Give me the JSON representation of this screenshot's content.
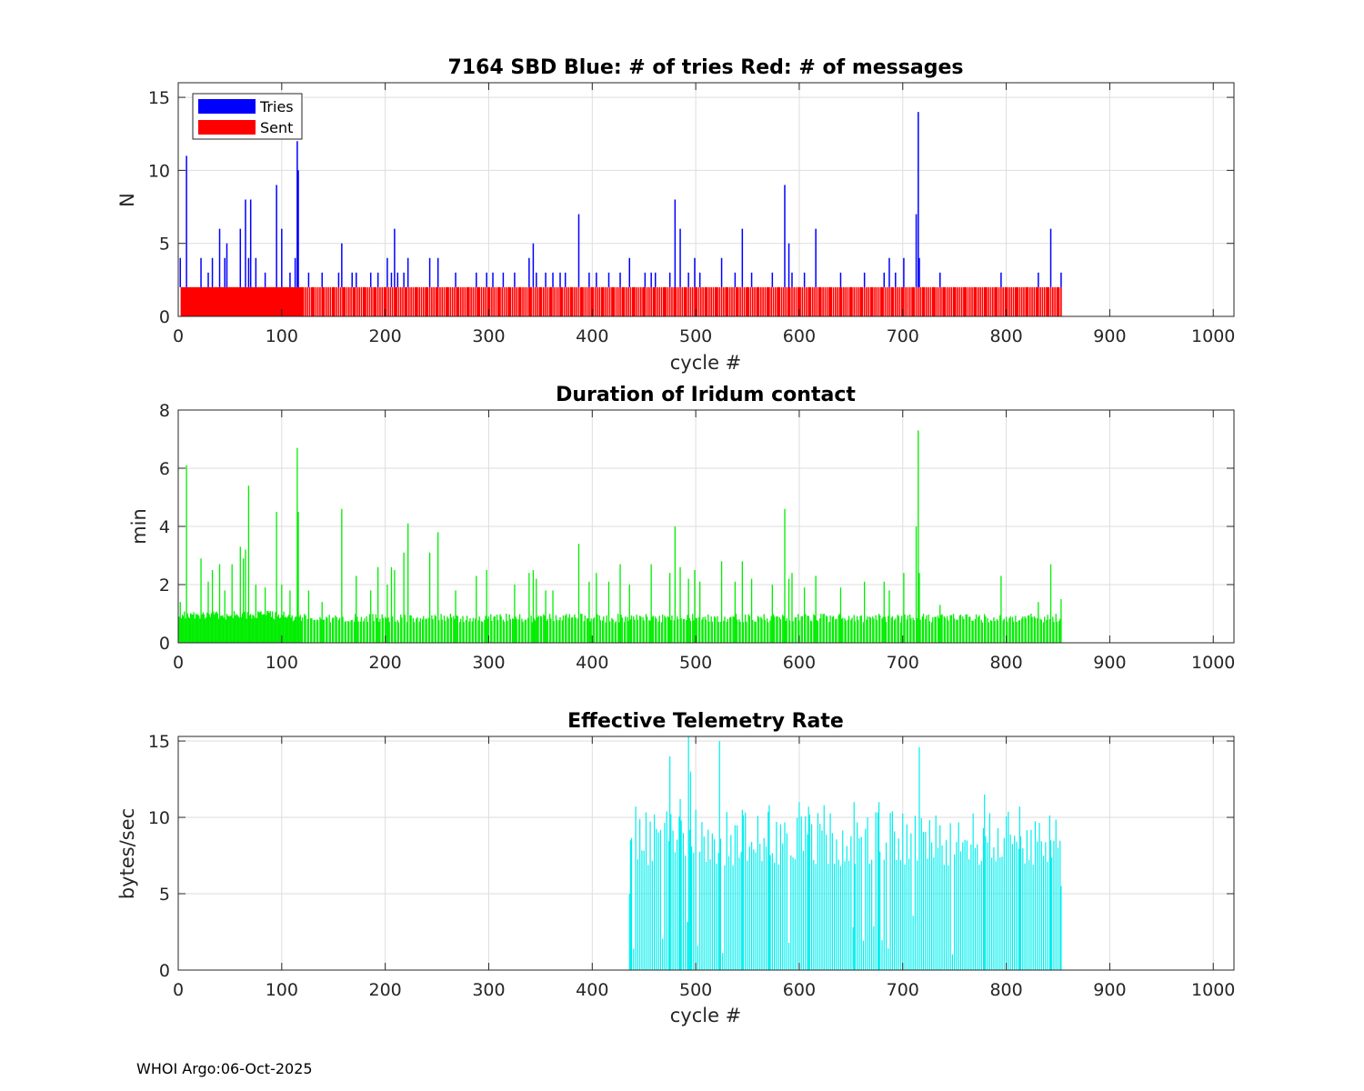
{
  "footer": "WHOI Argo:06-Oct-2025",
  "colors": {
    "tries": "#0000ff",
    "sent": "#ff0000",
    "duration": "#00ee00",
    "rate": "#00eeee",
    "grid": "#dedede"
  },
  "chart_data": [
    {
      "type": "bar",
      "title": "7164 SBD  Blue: # of tries   Red: # of messages",
      "xlabel": "cycle #",
      "ylabel": "N",
      "xlim": [
        0,
        1020
      ],
      "ylim": [
        0,
        16
      ],
      "xticks": [
        0,
        100,
        200,
        300,
        400,
        500,
        600,
        700,
        800,
        900,
        1000
      ],
      "yticks": [
        0,
        5,
        10,
        15
      ],
      "grid": true,
      "legend": {
        "placement": "top-left",
        "entries": [
          "Tries",
          "Sent"
        ]
      },
      "series": [
        {
          "name": "Tries",
          "color": "#0000ff",
          "x": [
            2,
            8,
            22,
            29,
            33,
            40,
            45,
            47,
            60,
            65,
            68,
            70,
            75,
            84,
            95,
            100,
            108,
            113,
            115,
            116,
            126,
            139,
            155,
            158,
            168,
            172,
            186,
            193,
            202,
            206,
            209,
            212,
            218,
            222,
            243,
            251,
            268,
            288,
            298,
            304,
            314,
            325,
            339,
            343,
            346,
            355,
            362,
            369,
            374,
            387,
            397,
            404,
            416,
            427,
            436,
            451,
            457,
            461,
            475,
            480,
            485,
            493,
            499,
            504,
            525,
            538,
            545,
            554,
            574,
            586,
            590,
            593,
            605,
            616,
            640,
            663,
            682,
            687,
            693,
            701,
            713,
            715,
            716,
            736,
            795,
            831,
            843,
            853
          ],
          "values": [
            4,
            11,
            4,
            3,
            4,
            6,
            4,
            5,
            6,
            8,
            4,
            8,
            4,
            3,
            9,
            6,
            3,
            4,
            12,
            10,
            3,
            3,
            3,
            5,
            3,
            3,
            3,
            3,
            4,
            3,
            6,
            3,
            3,
            4,
            4,
            4,
            3,
            3,
            3,
            3,
            3,
            3,
            4,
            5,
            3,
            3,
            3,
            3,
            3,
            7,
            3,
            3,
            3,
            3,
            4,
            3,
            3,
            3,
            3,
            8,
            6,
            3,
            4,
            3,
            4,
            3,
            6,
            3,
            3,
            9,
            5,
            3,
            3,
            6,
            3,
            3,
            3,
            4,
            3,
            4,
            7,
            14,
            4,
            3,
            3,
            3,
            6,
            3
          ]
        },
        {
          "name": "Sent",
          "color": "#ff0000",
          "note_values": "2 messages per cycle, cycles 3 to 853",
          "x_range": [
            3,
            853
          ],
          "value": 2
        }
      ]
    },
    {
      "type": "bar",
      "title": "Duration of Iridum contact",
      "xlabel": "",
      "ylabel": "min",
      "xlim": [
        0,
        1020
      ],
      "ylim": [
        0,
        8
      ],
      "xticks": [
        0,
        100,
        200,
        300,
        400,
        500,
        600,
        700,
        800,
        900,
        1000
      ],
      "yticks": [
        0,
        2,
        4,
        6,
        8
      ],
      "grid": true,
      "series": [
        {
          "color": "#00ee00",
          "x_range": [
            1,
            853
          ],
          "baseline": 0.85,
          "peaks": {
            "x": [
              2,
              8,
              22,
              29,
              33,
              40,
              45,
              52,
              60,
              63,
              65,
              68,
              75,
              84,
              95,
              100,
              108,
              115,
              116,
              126,
              139,
              158,
              172,
              186,
              193,
              202,
              206,
              209,
              218,
              222,
              243,
              251,
              268,
              288,
              298,
              325,
              339,
              343,
              346,
              355,
              362,
              387,
              397,
              404,
              416,
              427,
              436,
              457,
              475,
              480,
              485,
              493,
              499,
              504,
              525,
              538,
              545,
              554,
              574,
              586,
              590,
              593,
              605,
              616,
              640,
              663,
              682,
              687,
              701,
              713,
              715,
              716,
              736,
              795,
              831,
              843,
              853
            ],
            "values": [
              1.4,
              6.1,
              2.9,
              2.1,
              2.5,
              2.7,
              1.8,
              2.7,
              3.3,
              2.9,
              3.2,
              5.4,
              2.0,
              1.9,
              4.5,
              2.0,
              1.8,
              6.7,
              4.5,
              1.8,
              1.4,
              4.6,
              2.3,
              1.8,
              2.6,
              2.0,
              2.6,
              2.5,
              3.1,
              4.1,
              3.1,
              3.8,
              1.8,
              2.3,
              2.5,
              2.0,
              2.4,
              2.5,
              2.2,
              1.8,
              1.8,
              3.4,
              2.1,
              2.4,
              2.1,
              2.7,
              2.0,
              2.7,
              2.4,
              4.0,
              2.6,
              2.2,
              2.5,
              2.1,
              2.8,
              2.1,
              2.8,
              2.2,
              2.0,
              4.6,
              2.2,
              2.4,
              1.9,
              2.3,
              1.9,
              2.1,
              2.1,
              1.8,
              2.4,
              4.0,
              7.3,
              2.4,
              1.3,
              2.3,
              1.4,
              2.7,
              1.5
            ]
          }
        }
      ]
    },
    {
      "type": "bar",
      "title": "Effective Telemetry Rate",
      "xlabel": "cycle #",
      "ylabel": "bytes/sec",
      "xlim": [
        0,
        1020
      ],
      "ylim": [
        0,
        15.3
      ],
      "xticks": [
        0,
        100,
        200,
        300,
        400,
        500,
        600,
        700,
        800,
        900,
        1000
      ],
      "yticks": [
        0,
        5,
        10,
        15
      ],
      "grid": true,
      "series": [
        {
          "color": "#00eeee",
          "x_range": [
            436,
            853
          ],
          "peaks": {
            "x": [
              436,
              437,
              442,
              446,
              475,
              485,
              493,
              495,
              500,
              523,
              545,
              571,
              600,
              609,
              624,
              653,
              677,
              716,
              779,
              813,
              843,
              850,
              853
            ],
            "values": [
              5.0,
              8.5,
              10.7,
              9.9,
              14.0,
              11.2,
              15.3,
              13.0,
              10.5,
              15.0,
              10.5,
              10.8,
              11.0,
              10.7,
              10.8,
              11.0,
              11.0,
              14.6,
              11.5,
              10.7,
              8.5,
              8.0,
              5.5
            ]
          }
        }
      ]
    }
  ]
}
